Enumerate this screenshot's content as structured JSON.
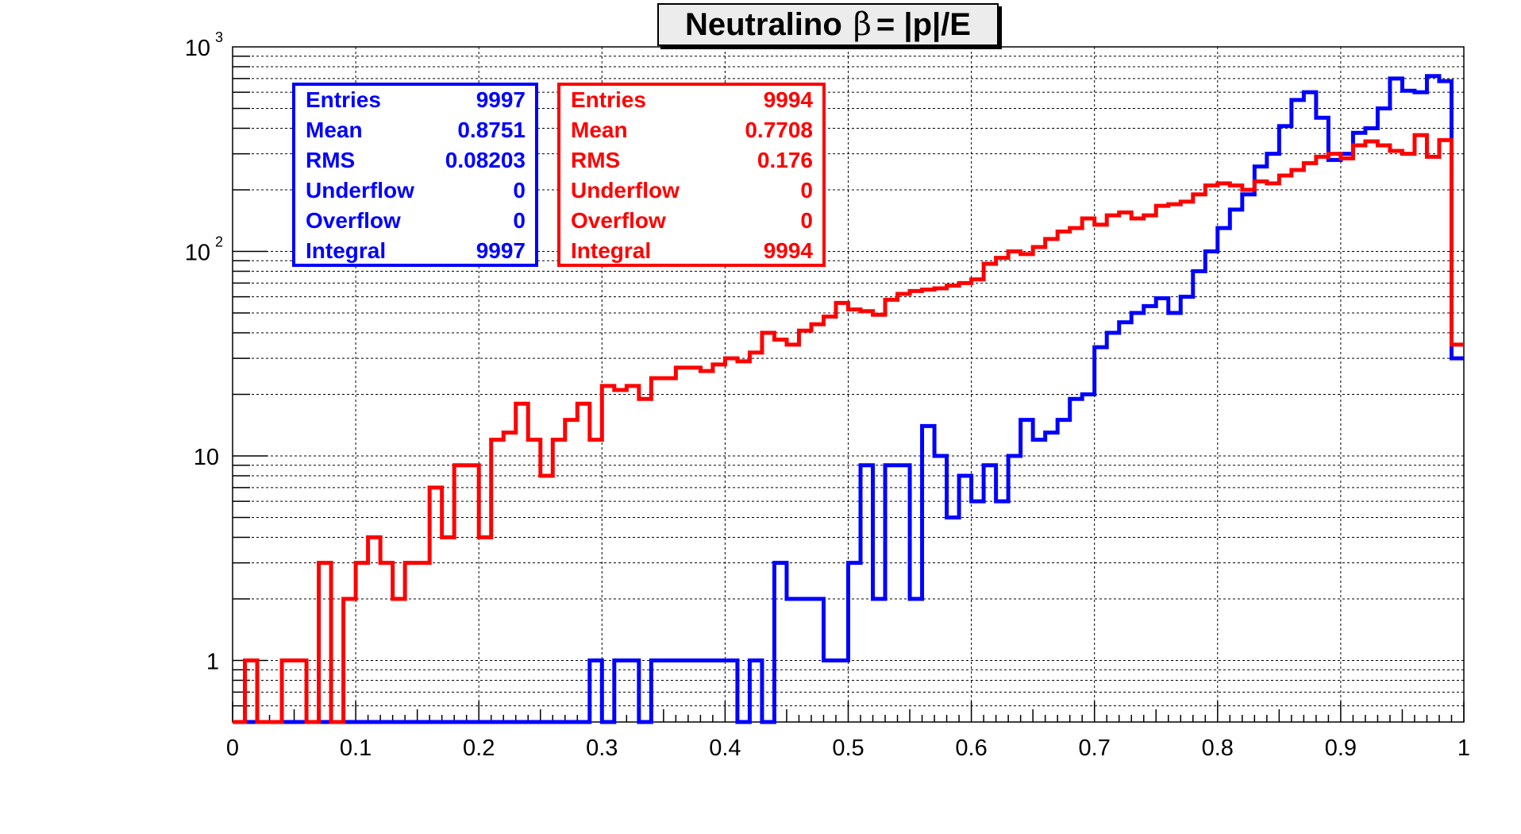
{
  "chart_data": {
    "type": "histogram",
    "title": "Neutralino β = |p|/E",
    "title_parts": {
      "prefix": "Neutralino",
      "symbol": "β",
      "suffix": "= |p|/E"
    },
    "xlim": [
      0,
      1
    ],
    "ylim": [
      0.5,
      1000
    ],
    "yscale": "log",
    "grid": true,
    "bins": 100,
    "x_ticks": [
      "0",
      "0.1",
      "0.2",
      "0.3",
      "0.4",
      "0.5",
      "0.6",
      "0.7",
      "0.8",
      "0.9",
      "1"
    ],
    "y_ticks": [
      {
        "value": 1,
        "base": "1",
        "exp": ""
      },
      {
        "value": 10,
        "base": "10",
        "exp": ""
      },
      {
        "value": 100,
        "base": "10",
        "exp": "2"
      },
      {
        "value": 1000,
        "base": "10",
        "exp": "3"
      }
    ],
    "series": [
      {
        "color": "#0000ff",
        "values": [
          0,
          0,
          0,
          0,
          0,
          0,
          0,
          0,
          0,
          0,
          0,
          0,
          0,
          0,
          0,
          0,
          0,
          0,
          0,
          0,
          0,
          0,
          0,
          0,
          0,
          0,
          0,
          0,
          0,
          1,
          0,
          1,
          1,
          0,
          1,
          1,
          1,
          1,
          1,
          1,
          1,
          0,
          1,
          0,
          3,
          2,
          2,
          2,
          1,
          1,
          3,
          9,
          2,
          9,
          9,
          2,
          14,
          10,
          5,
          8,
          6,
          9,
          6,
          10,
          15,
          12,
          13,
          15,
          19,
          20,
          34,
          40,
          45,
          50,
          54,
          59,
          50,
          60,
          80,
          100,
          130,
          160,
          190,
          260,
          300,
          410,
          550,
          600,
          450,
          280,
          300,
          380,
          400,
          500,
          700,
          610,
          600,
          720,
          680,
          30
        ],
        "stats": [
          {
            "label": "Entries",
            "value": "9997"
          },
          {
            "label": "Mean",
            "value": "0.8751"
          },
          {
            "label": "RMS",
            "value": "0.08203"
          },
          {
            "label": "Underflow",
            "value": "0"
          },
          {
            "label": "Overflow",
            "value": "0"
          },
          {
            "label": "Integral",
            "value": "9997"
          }
        ]
      },
      {
        "color": "#ff0000",
        "values": [
          0,
          1,
          0,
          0,
          1,
          1,
          0,
          3,
          0,
          2,
          3,
          4,
          3,
          2,
          3,
          3,
          7,
          4,
          9,
          9,
          4,
          12,
          13,
          18,
          12,
          8,
          12,
          15,
          18,
          12,
          22,
          21,
          22,
          19,
          24,
          24,
          27,
          27,
          26,
          28,
          30,
          29,
          32,
          40,
          37,
          35,
          41,
          44,
          48,
          56,
          52,
          51,
          49,
          58,
          62,
          64,
          65,
          66,
          68,
          70,
          73,
          87,
          93,
          100,
          97,
          105,
          115,
          125,
          130,
          145,
          135,
          150,
          155,
          145,
          150,
          167,
          170,
          175,
          190,
          210,
          215,
          210,
          200,
          220,
          215,
          235,
          250,
          270,
          290,
          300,
          285,
          330,
          345,
          330,
          310,
          300,
          370,
          290,
          350,
          35
        ],
        "stats": [
          {
            "label": "Entries",
            "value": "9994"
          },
          {
            "label": "Mean",
            "value": "0.7708"
          },
          {
            "label": "RMS",
            "value": "0.176"
          },
          {
            "label": "Underflow",
            "value": "0"
          },
          {
            "label": "Overflow",
            "value": "0"
          },
          {
            "label": "Integral",
            "value": "9994"
          }
        ]
      }
    ]
  }
}
